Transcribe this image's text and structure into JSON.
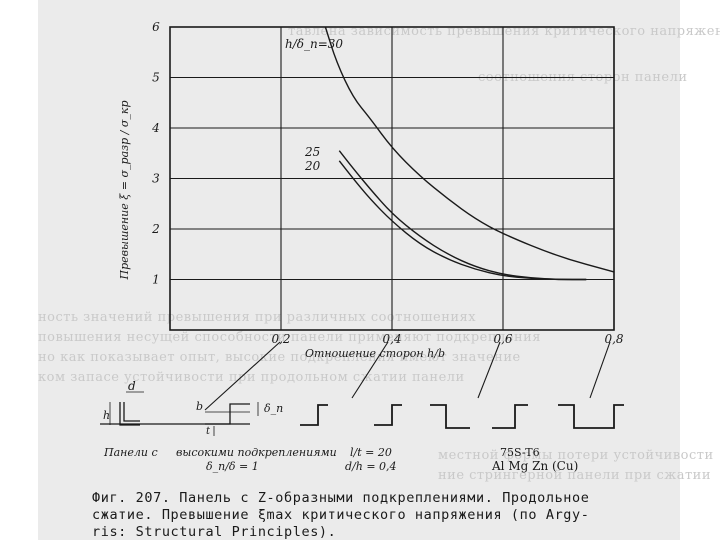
{
  "figure": {
    "ylabel": "Превышение ξ = σ_разр / σ_кр",
    "xlabel": "Отношение сторон h/b",
    "curve_labels": {
      "c30": "h/δ_п=30",
      "c25": "25",
      "c20": "20"
    }
  },
  "chart_data": {
    "type": "line",
    "ylabel": "Превышение ξ = σ_разр / σ_кр",
    "xlabel": "Отношение сторон h/b",
    "xlim": [
      0,
      0.8
    ],
    "ylim": [
      0,
      6
    ],
    "x_ticks": [
      "0,2",
      "0,4",
      "0,6",
      "0,8"
    ],
    "y_ticks": [
      "1",
      "2",
      "3",
      "4",
      "5",
      "6"
    ],
    "grid": true,
    "series": [
      {
        "name": "h/δ_п=30",
        "x": [
          0.28,
          0.3,
          0.33,
          0.36,
          0.4,
          0.45,
          0.5,
          0.55,
          0.6,
          0.7,
          0.8
        ],
        "y": [
          6.0,
          5.3,
          4.6,
          4.2,
          3.6,
          3.05,
          2.6,
          2.2,
          1.9,
          1.45,
          1.15
        ]
      },
      {
        "name": "25",
        "x": [
          0.305,
          0.33,
          0.36,
          0.4,
          0.45,
          0.5,
          0.55,
          0.6,
          0.65,
          0.7,
          0.75
        ],
        "y": [
          3.55,
          3.2,
          2.8,
          2.3,
          1.85,
          1.5,
          1.25,
          1.1,
          1.03,
          1.0,
          1.0
        ]
      },
      {
        "name": "20",
        "x": [
          0.305,
          0.33,
          0.36,
          0.4,
          0.45,
          0.5,
          0.55,
          0.6,
          0.65,
          0.7,
          0.75
        ],
        "y": [
          3.35,
          3.0,
          2.6,
          2.15,
          1.7,
          1.4,
          1.2,
          1.07,
          1.02,
          1.0,
          1.0
        ]
      }
    ]
  },
  "annotations": {
    "panel_label": "Панели с",
    "height_label": "высокими подкреплениями",
    "ratio1": "δ_п/δ = 1",
    "ratio2": "l/t = 20",
    "ratio3": "d/h = 0,4",
    "material1": "75S-T6",
    "material2": "Al Mg Zn (Cu)",
    "dim_d": "d",
    "dim_h": "h",
    "dim_b": "b",
    "dim_delta": "δ_п",
    "dim_t": "t"
  },
  "caption": {
    "line1": "Фиг. 207. Панель с Z-образными подкреплениями. Продольное",
    "line2": "сжатие. Превышение ξmax критического напряжения (по Argy-",
    "line3": "ris: Structural Principles)."
  }
}
